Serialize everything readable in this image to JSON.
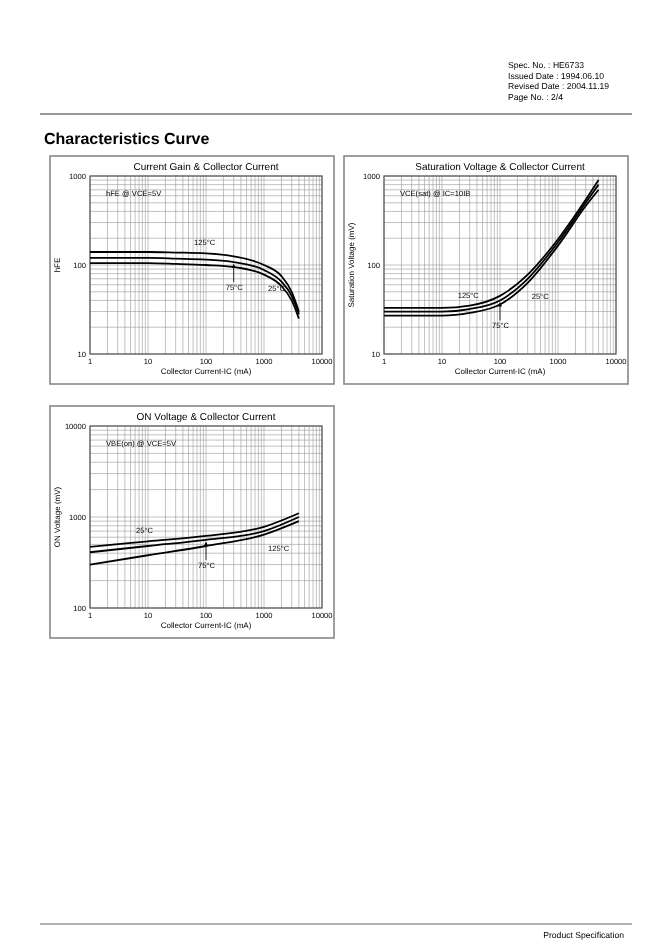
{
  "chart_data": [
    {
      "type": "other",
      "title": "Characteristics Curve",
      "annotations": [
        "Spec. No. : HE6733",
        "Issued Date : 1994.06.10",
        "Revised Date : 2004.11.19",
        "Page No. : 2/4",
        "Product Specification"
      ]
    },
    {
      "type": "line",
      "title": "Current Gain & Collector Current",
      "xlabel": "Collector Current-IC (mA)",
      "ylabel": "hFE",
      "log": "xy",
      "grid": true,
      "xlim": [
        1,
        10000
      ],
      "ylim": [
        10,
        1000
      ],
      "xticks": [
        1,
        10,
        100,
        1000,
        10000
      ],
      "yticks": [
        10,
        100,
        1000
      ],
      "annotations": [
        "hFE @ VCE=5V"
      ],
      "x": [
        1,
        3,
        10,
        30,
        100,
        300,
        1000,
        2000,
        3000,
        4000
      ],
      "series": [
        {
          "name": "125°C",
          "color": "#000000",
          "values": [
            140,
            140,
            140,
            138,
            135,
            125,
            100,
            75,
            50,
            30
          ]
        },
        {
          "name": "75°C",
          "color": "#000000",
          "values": [
            120,
            120,
            120,
            118,
            115,
            108,
            88,
            65,
            45,
            28
          ]
        },
        {
          "name": "25°C",
          "color": "#000000",
          "values": [
            105,
            105,
            105,
            103,
            100,
            95,
            78,
            58,
            40,
            25
          ]
        }
      ]
    },
    {
      "type": "line",
      "title": "Saturation Voltage & Collector Current",
      "xlabel": "Collector Current-IC (mA)",
      "ylabel": "Saturation Voltage (mV)",
      "log": "xy",
      "grid": true,
      "xlim": [
        1,
        10000
      ],
      "ylim": [
        10,
        1000
      ],
      "xticks": [
        1,
        10,
        100,
        1000,
        10000
      ],
      "yticks": [
        10,
        100,
        1000
      ],
      "annotations": [
        "VCE(sat) @ IC=10IB"
      ],
      "x": [
        1,
        3,
        10,
        30,
        100,
        300,
        1000,
        3000,
        5000
      ],
      "series": [
        {
          "name": "125°C",
          "color": "#000000",
          "values": [
            33,
            33,
            33,
            35,
            45,
            78,
            195,
            540,
            900
          ]
        },
        {
          "name": "75°C",
          "color": "#000000",
          "values": [
            30,
            30,
            30,
            32,
            40,
            70,
            180,
            500,
            800
          ]
        },
        {
          "name": "25°C",
          "color": "#000000",
          "values": [
            27,
            27,
            27,
            29,
            36,
            63,
            165,
            460,
            700
          ]
        }
      ]
    },
    {
      "type": "line",
      "title": "ON Voltage & Collector Current",
      "xlabel": "Collector Current-IC (mA)",
      "ylabel": "ON Voltage (mV)",
      "log": "xy",
      "grid": true,
      "xlim": [
        1,
        10000
      ],
      "ylim": [
        100,
        10000
      ],
      "xticks": [
        1,
        10,
        100,
        1000,
        10000
      ],
      "yticks": [
        100,
        1000,
        10000
      ],
      "annotations": [
        "VBE(on) @ VCE=5V"
      ],
      "x": [
        1,
        10,
        100,
        1000,
        4000
      ],
      "series": [
        {
          "name": "25°C",
          "color": "#000000",
          "values": [
            470,
            540,
            620,
            780,
            1100
          ]
        },
        {
          "name": "75°C",
          "color": "#000000",
          "values": [
            410,
            480,
            560,
            700,
            1000
          ]
        },
        {
          "name": "125°C",
          "color": "#000000",
          "values": [
            300,
            380,
            480,
            640,
            900
          ]
        }
      ]
    }
  ]
}
